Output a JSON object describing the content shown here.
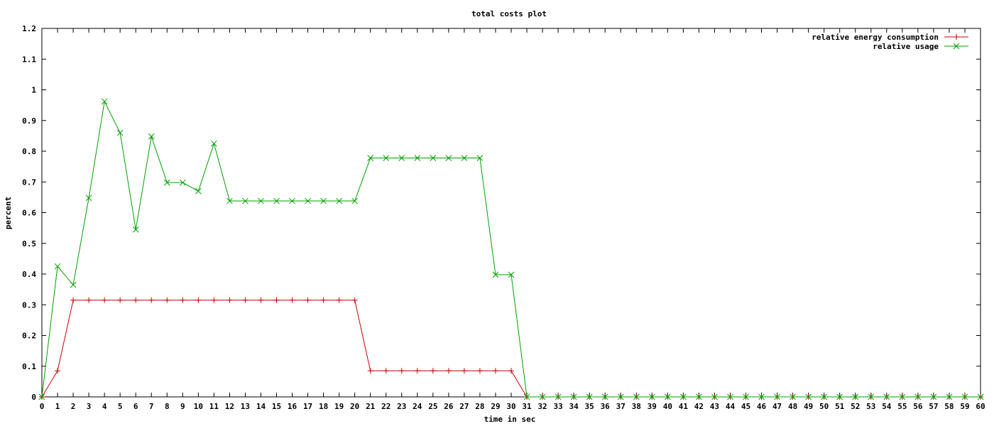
{
  "chart_data": {
    "type": "line",
    "title": "total costs plot",
    "xlabel": "time in sec",
    "ylabel": "percent",
    "xlim": [
      0,
      60
    ],
    "ylim": [
      0,
      1.2
    ],
    "x_ticks": [
      "0",
      "1",
      "2",
      "3",
      "4",
      "5",
      "6",
      "7",
      "8",
      "9",
      "10",
      "11",
      "12",
      "13",
      "14",
      "15",
      "16",
      "17",
      "18",
      "19",
      "20",
      "21",
      "22",
      "23",
      "24",
      "25",
      "26",
      "27",
      "28",
      "29",
      "30",
      "31",
      "32",
      "33",
      "34",
      "35",
      "36",
      "37",
      "38",
      "39",
      "40",
      "41",
      "42",
      "43",
      "44",
      "45",
      "46",
      "47",
      "48",
      "49",
      "50",
      "51",
      "52",
      "53",
      "54",
      "55",
      "56",
      "57",
      "58",
      "59",
      "60"
    ],
    "y_ticks": [
      "0",
      "0.1",
      "0.2",
      "0.3",
      "0.4",
      "0.5",
      "0.6",
      "0.7",
      "0.8",
      "0.9",
      "1",
      "1.1",
      "1.2"
    ],
    "grid": false,
    "legend_position": "top-right",
    "x": [
      0,
      1,
      2,
      3,
      4,
      5,
      6,
      7,
      8,
      9,
      10,
      11,
      12,
      13,
      14,
      15,
      16,
      17,
      18,
      19,
      20,
      21,
      22,
      23,
      24,
      25,
      26,
      27,
      28,
      29,
      30,
      31,
      32,
      33,
      34,
      35,
      36,
      37,
      38,
      39,
      40,
      41,
      42,
      43,
      44,
      45,
      46,
      47,
      48,
      49,
      50,
      51,
      52,
      53,
      54,
      55,
      56,
      57,
      58,
      59,
      60
    ],
    "series": [
      {
        "name": "relative energy consumption",
        "color": "#cc0000",
        "marker": "plus",
        "values": [
          0,
          0.085,
          0.315,
          0.315,
          0.315,
          0.315,
          0.315,
          0.315,
          0.315,
          0.315,
          0.315,
          0.315,
          0.315,
          0.315,
          0.315,
          0.315,
          0.315,
          0.315,
          0.315,
          0.315,
          0.315,
          0.085,
          0.085,
          0.085,
          0.085,
          0.085,
          0.085,
          0.085,
          0.085,
          0.085,
          0.085,
          0,
          0,
          0,
          0,
          0,
          0,
          0,
          0,
          0,
          0,
          0,
          0,
          0,
          0,
          0,
          0,
          0,
          0,
          0,
          0,
          0,
          0,
          0,
          0,
          0,
          0,
          0,
          0,
          0,
          0
        ]
      },
      {
        "name": "relative usage",
        "color": "#00a000",
        "marker": "cross",
        "values": [
          0,
          0.425,
          0.365,
          0.648,
          0.962,
          0.86,
          0.545,
          0.848,
          0.698,
          0.698,
          0.67,
          0.825,
          0.638,
          0.638,
          0.638,
          0.638,
          0.638,
          0.638,
          0.638,
          0.638,
          0.638,
          0.778,
          0.778,
          0.778,
          0.778,
          0.778,
          0.778,
          0.778,
          0.778,
          0.398,
          0.398,
          0,
          0,
          0,
          0,
          0,
          0,
          0,
          0,
          0,
          0,
          0,
          0,
          0,
          0,
          0,
          0,
          0,
          0,
          0,
          0,
          0,
          0,
          0,
          0,
          0,
          0,
          0,
          0,
          0,
          0
        ]
      }
    ]
  }
}
